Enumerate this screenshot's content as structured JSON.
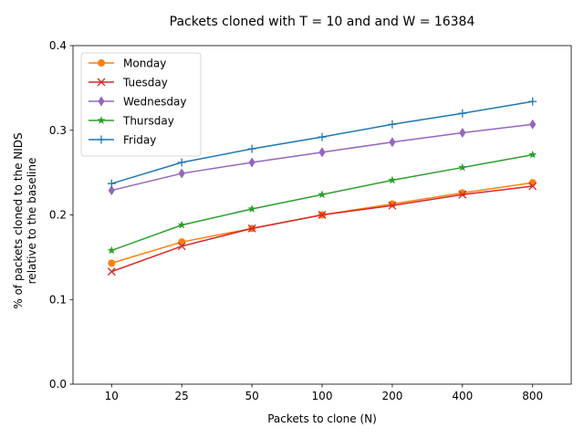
{
  "chart_data": {
    "type": "line",
    "title": "Packets cloned with T = 10 and and W = 16384",
    "xlabel": "Packets to clone (N)",
    "ylabel": [
      "% of packets cloned to the NIDS",
      "relative to the baseline"
    ],
    "categories": [
      "10",
      "25",
      "50",
      "100",
      "200",
      "400",
      "800"
    ],
    "ylim": [
      0.0,
      0.4
    ],
    "yticks": [
      "0.0",
      "0.1",
      "0.2",
      "0.3",
      "0.4"
    ],
    "grid": false,
    "legend_position": "top-left",
    "series": [
      {
        "name": "Monday",
        "color": "#ff7f0e",
        "marker": "circle",
        "values": [
          0.143,
          0.168,
          0.184,
          0.2,
          0.213,
          0.226,
          0.238
        ]
      },
      {
        "name": "Tuesday",
        "color": "#d62728",
        "marker": "x",
        "values": [
          0.133,
          0.163,
          0.184,
          0.2,
          0.211,
          0.224,
          0.234
        ]
      },
      {
        "name": "Wednesday",
        "color": "#9467bd",
        "marker": "diamond",
        "values": [
          0.229,
          0.249,
          0.262,
          0.274,
          0.286,
          0.297,
          0.307
        ]
      },
      {
        "name": "Thursday",
        "color": "#2ca02c",
        "marker": "star",
        "values": [
          0.158,
          0.188,
          0.207,
          0.224,
          0.241,
          0.256,
          0.271
        ]
      },
      {
        "name": "Friday",
        "color": "#1f77b4",
        "marker": "plus",
        "values": [
          0.237,
          0.262,
          0.278,
          0.292,
          0.307,
          0.32,
          0.334
        ]
      }
    ]
  }
}
